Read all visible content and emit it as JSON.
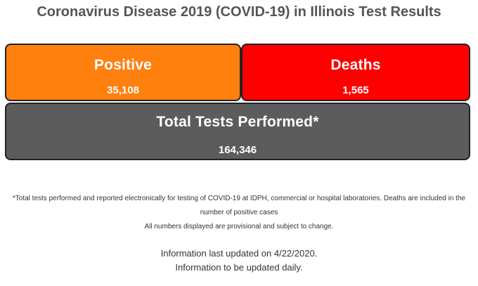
{
  "title": "Coronavirus Disease 2019 (COVID-19) in Illinois Test Results",
  "cards": {
    "positive": {
      "label": "Positive",
      "value": "35,108",
      "color": "#ff7f0f"
    },
    "deaths": {
      "label": "Deaths",
      "value": "1,565",
      "color": "#ff0000"
    },
    "total": {
      "label": "Total Tests Performed*",
      "value": "164,346",
      "color": "#5c5c5c"
    }
  },
  "footnote": {
    "line1": "*Total tests performed and reported electronically for testing of COVID-19 at IDPH, commercial or hospital laboratories. Deaths are included in the number of positive cases",
    "line2": "All numbers displayed are provisional and subject to change."
  },
  "info": {
    "updated": "Information last updated on 4/22/2020.",
    "frequency": "Information to be updated daily."
  }
}
